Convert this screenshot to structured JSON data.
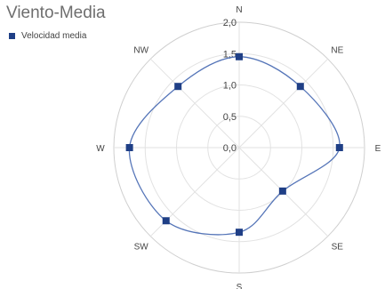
{
  "chart_data": {
    "type": "radar",
    "title": "Viento-Media",
    "categories": [
      "N",
      "NE",
      "E",
      "SE",
      "S",
      "SW",
      "W",
      "NW"
    ],
    "series": [
      {
        "name": "Velocidad media",
        "values": [
          1.45,
          1.38,
          1.6,
          0.98,
          1.35,
          1.65,
          1.75,
          1.38
        ],
        "color": "#1f3f86",
        "line_color": "#5575b8"
      }
    ],
    "rlim": [
      0,
      2.0
    ],
    "ticks": [
      "0,0",
      "0,5",
      "1,0",
      "1,5",
      "2,0"
    ],
    "tick_values": [
      0,
      0.5,
      1.0,
      1.5,
      2.0
    ],
    "grid": true,
    "legend_position": "top-left"
  }
}
